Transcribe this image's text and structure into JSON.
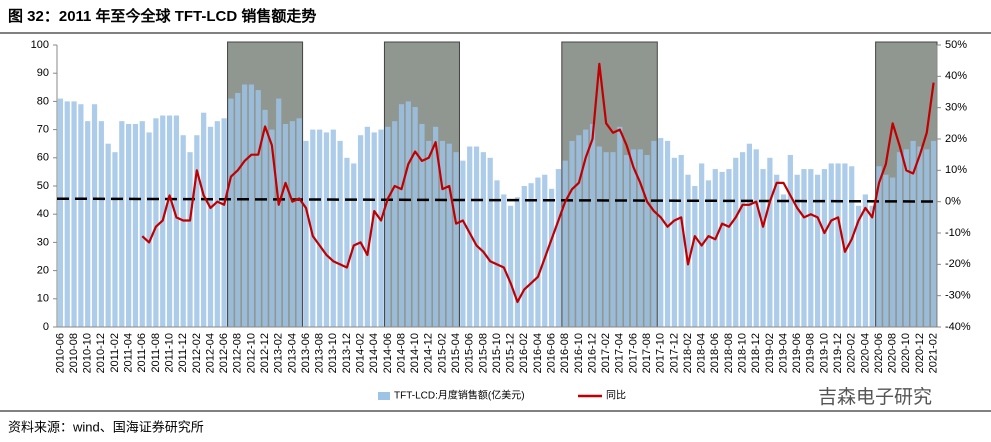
{
  "chart_data": {
    "type": "bar_line",
    "title": "图 32：2011 年至今全球 TFT-LCD 销售额走势",
    "source": "资料来源：wind、国海证券研究所",
    "watermark": "吉森电子研究",
    "categories": [
      "2010-06",
      null,
      "2010-08",
      null,
      "2010-10",
      null,
      "2010-12",
      null,
      "2011-02",
      null,
      "2011-04",
      null,
      "2011-06",
      null,
      "2011-08",
      null,
      "2011-10",
      null,
      "2011-12",
      null,
      "2012-02",
      null,
      "2012-04",
      null,
      "2012-06",
      null,
      "2012-08",
      null,
      "2012-10",
      null,
      "2012-12",
      null,
      "2013-02",
      null,
      "2013-04",
      null,
      "2013-06",
      null,
      "2013-08",
      null,
      "2013-10",
      null,
      "2013-12",
      null,
      "2014-02",
      null,
      "2014-04",
      null,
      "2014-06",
      null,
      "2014-08",
      null,
      "2014-10",
      null,
      "2014-12",
      null,
      "2015-02",
      null,
      "2015-04",
      null,
      "2015-06",
      null,
      "2015-08",
      null,
      "2015-10",
      null,
      "2015-12",
      null,
      "2016-02",
      null,
      "2016-04",
      null,
      "2016-06",
      null,
      "2016-08",
      null,
      "2016-10",
      null,
      "2016-12",
      null,
      "2017-02",
      null,
      "2017-04",
      null,
      "2017-06",
      null,
      "2017-08",
      null,
      "2017-10",
      null,
      "2017-12",
      null,
      "2018-02",
      null,
      "2018-04",
      null,
      "2018-06",
      null,
      "2018-08",
      null,
      "2018-10",
      null,
      "2018-12",
      null,
      "2019-02",
      null,
      "2019-04",
      null,
      "2019-06",
      null,
      "2019-08",
      null,
      "2019-10",
      null,
      "2019-12",
      null,
      "2020-02",
      null,
      "2020-04",
      null,
      "2020-06",
      null,
      "2020-08",
      null,
      "2020-10",
      null,
      "2020-12",
      null,
      "2021-02"
    ],
    "series": [
      {
        "name": "TFT-LCD:月度销售额(亿美元)",
        "color": "#9dc3e6",
        "kind": "bar",
        "values": [
          81,
          80,
          80,
          79,
          73,
          79,
          73,
          65,
          62,
          73,
          72,
          72,
          73,
          69,
          74,
          75,
          75,
          75,
          68,
          62,
          68,
          76,
          71,
          73,
          74,
          81,
          83,
          86,
          86,
          84,
          77,
          70,
          81,
          72,
          73,
          74,
          66,
          70,
          70,
          69,
          70,
          66,
          60,
          58,
          68,
          71,
          69,
          70,
          71,
          73,
          79,
          80,
          78,
          72,
          66,
          71,
          66,
          65,
          62,
          59,
          64,
          64,
          62,
          60,
          52,
          47,
          43,
          46,
          50,
          51,
          53,
          54,
          49,
          56,
          59,
          66,
          68,
          70,
          72,
          64,
          62,
          62,
          71,
          61,
          63,
          63,
          61,
          66,
          67,
          66,
          60,
          61,
          54,
          50,
          58,
          52,
          56,
          55,
          56,
          60,
          62,
          65,
          63,
          56,
          60,
          54,
          47,
          61,
          54,
          56,
          56,
          54,
          56,
          58,
          58,
          58,
          57,
          43,
          47,
          43,
          57,
          54,
          53,
          62,
          63,
          66,
          64,
          63,
          66
        ]
      },
      {
        "name": "同比",
        "color": "#c00000",
        "kind": "line",
        "axis": "y2",
        "values": [
          null,
          null,
          null,
          null,
          null,
          null,
          null,
          null,
          null,
          null,
          null,
          null,
          -11,
          -13,
          -8,
          -6,
          2,
          -5,
          -6,
          -6,
          10,
          2,
          -2,
          0,
          -1,
          8,
          10,
          13,
          15,
          15,
          24,
          18,
          -1,
          6,
          0,
          1,
          -2,
          -11,
          -14,
          -17,
          -19,
          -20,
          -21,
          -14,
          -13,
          -17,
          -3,
          -6,
          1,
          5,
          4,
          12,
          16,
          13,
          14,
          19,
          4,
          5,
          -7,
          -6,
          -10,
          -14,
          -16,
          -19,
          -20,
          -21,
          -26,
          -32,
          -28,
          -26,
          -24,
          -18,
          -12,
          -6,
          0,
          4,
          6,
          14,
          20,
          44,
          25,
          22,
          23,
          18,
          11,
          6,
          0,
          -3,
          -5,
          -8,
          -6,
          -5,
          -20,
          -11,
          -14,
          -11,
          -12,
          -7,
          -8,
          -5,
          -1,
          -1,
          0,
          -8,
          0,
          6,
          6,
          2,
          -2,
          -5,
          -4,
          -5,
          -10,
          -6,
          -5,
          -16,
          -12,
          -6,
          -2,
          -5,
          6,
          12,
          25,
          18,
          10,
          9,
          15,
          22,
          38
        ]
      }
    ],
    "trend_line": {
      "values": [
        45.5,
        44.5
      ],
      "color": "#000000"
    },
    "shaded_periods": [
      {
        "start": "2012-07",
        "end": "2013-05"
      },
      {
        "start": "2014-06",
        "end": "2015-04"
      },
      {
        "start": "2016-08",
        "end": "2017-09"
      },
      {
        "start": "2020-06",
        "end": "2021-02"
      }
    ],
    "ylim": [
      0,
      100
    ],
    "yticks": [
      0,
      10,
      20,
      30,
      40,
      50,
      60,
      70,
      80,
      90,
      100
    ],
    "y2lim": [
      -40,
      50
    ],
    "y2ticks": [
      {
        "value": -40,
        "label": "-40%"
      },
      {
        "value": -30,
        "label": "-30%"
      },
      {
        "value": -20,
        "label": "-20%"
      },
      {
        "value": -10,
        "label": "-10%"
      },
      {
        "value": 0,
        "label": "0%"
      },
      {
        "value": 10,
        "label": "10%"
      },
      {
        "value": 20,
        "label": "20%"
      },
      {
        "value": 30,
        "label": "30%"
      },
      {
        "value": 40,
        "label": "40%"
      },
      {
        "value": 50,
        "label": "50%"
      }
    ],
    "legend": "bottom"
  }
}
